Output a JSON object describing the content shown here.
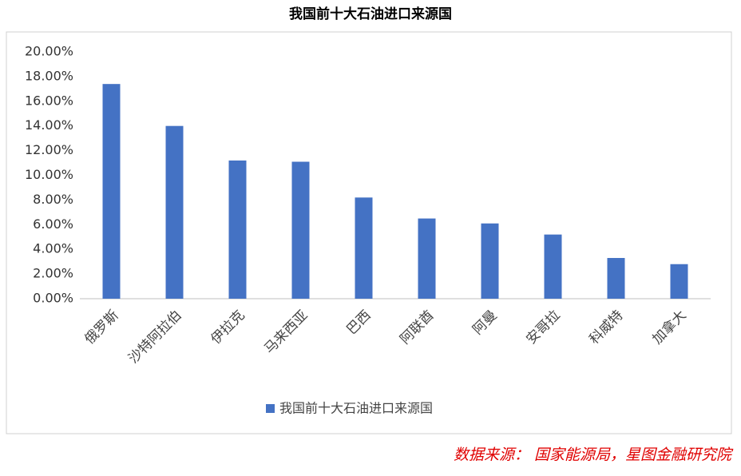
{
  "chart_data": {
    "type": "bar",
    "title": "我国前十大石油进口来源国",
    "categories": [
      "俄罗斯",
      "沙特阿拉伯",
      "伊拉克",
      "马来西亚",
      "巴西",
      "阿联酋",
      "阿曼",
      "安哥拉",
      "科威特",
      "加拿大"
    ],
    "series": [
      {
        "name": "我国前十大石油进口来源国",
        "color": "#4472c4",
        "values": [
          17.4,
          14.0,
          11.2,
          11.1,
          8.2,
          6.5,
          6.1,
          5.2,
          3.3,
          2.8
        ]
      }
    ],
    "ylim": [
      0,
      20
    ],
    "yticks": [
      {
        "value": 0,
        "label": "0.00%"
      },
      {
        "value": 2,
        "label": "2.00%"
      },
      {
        "value": 4,
        "label": "4.00%"
      },
      {
        "value": 6,
        "label": "6.00%"
      },
      {
        "value": 8,
        "label": "8.00%"
      },
      {
        "value": 10,
        "label": "10.00%"
      },
      {
        "value": 12,
        "label": "12.00%"
      },
      {
        "value": 14,
        "label": "14.00%"
      },
      {
        "value": 16,
        "label": "16.00%"
      },
      {
        "value": 18,
        "label": "18.00%"
      },
      {
        "value": 20,
        "label": "20.00%"
      }
    ],
    "grid": false,
    "legend": "bottom",
    "source": "数据来源： 国家能源局，星图金融研究院"
  }
}
